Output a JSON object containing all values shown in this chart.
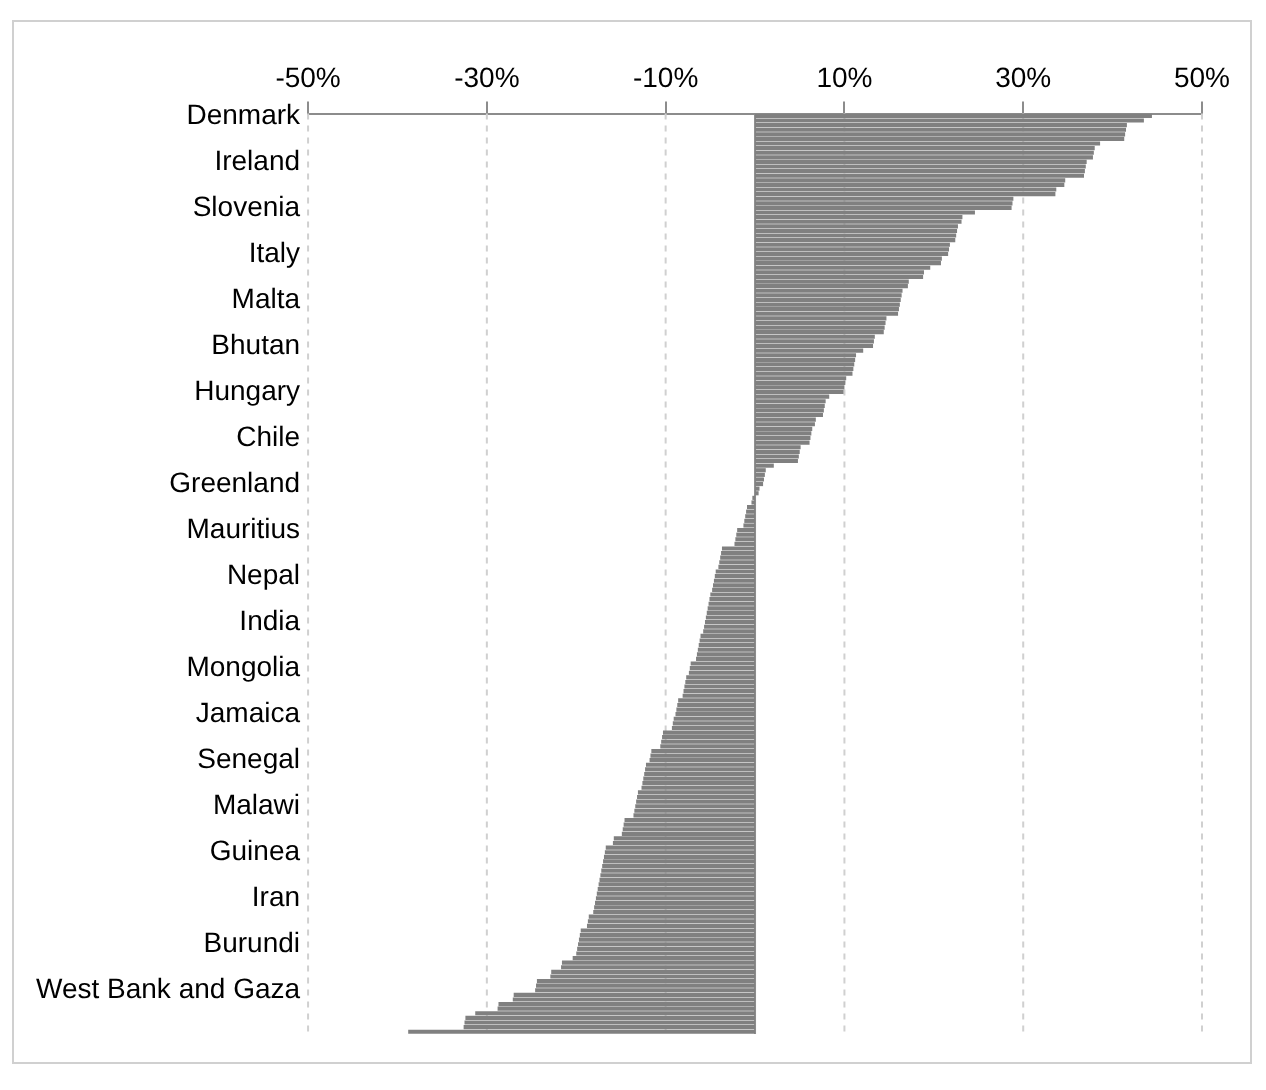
{
  "chart_data": {
    "type": "bar",
    "orientation": "horizontal",
    "categories": [
      "Denmark",
      null,
      null,
      null,
      null,
      null,
      null,
      null,
      null,
      null,
      "Ireland",
      null,
      null,
      null,
      null,
      null,
      null,
      null,
      null,
      null,
      "Slovenia",
      null,
      null,
      null,
      null,
      null,
      null,
      null,
      null,
      null,
      "Italy",
      null,
      null,
      null,
      null,
      null,
      null,
      null,
      null,
      null,
      "Malta",
      null,
      null,
      null,
      null,
      null,
      null,
      null,
      null,
      null,
      "Bhutan",
      null,
      null,
      null,
      null,
      null,
      null,
      null,
      null,
      null,
      "Hungary",
      null,
      null,
      null,
      null,
      null,
      null,
      null,
      null,
      null,
      "Chile",
      null,
      null,
      null,
      null,
      null,
      null,
      null,
      null,
      null,
      "Greenland",
      null,
      null,
      null,
      null,
      null,
      null,
      null,
      null,
      null,
      "Mauritius",
      null,
      null,
      null,
      null,
      null,
      null,
      null,
      null,
      null,
      "Nepal",
      null,
      null,
      null,
      null,
      null,
      null,
      null,
      null,
      null,
      "India",
      null,
      null,
      null,
      null,
      null,
      null,
      null,
      null,
      null,
      "Mongolia",
      null,
      null,
      null,
      null,
      null,
      null,
      null,
      null,
      null,
      "Jamaica",
      null,
      null,
      null,
      null,
      null,
      null,
      null,
      null,
      null,
      "Senegal",
      null,
      null,
      null,
      null,
      null,
      null,
      null,
      null,
      null,
      "Malawi",
      null,
      null,
      null,
      null,
      null,
      null,
      null,
      null,
      null,
      "Guinea",
      null,
      null,
      null,
      null,
      null,
      null,
      null,
      null,
      null,
      "Iran",
      null,
      null,
      null,
      null,
      null,
      null,
      null,
      null,
      null,
      "Burundi",
      null,
      null,
      null,
      null,
      null,
      null,
      null,
      null,
      null,
      "West Bank and Gaza",
      null,
      null,
      null,
      null,
      null,
      null,
      null,
      null,
      null
    ],
    "values": [
      44.4,
      43.5,
      41.6,
      41.5,
      41.4,
      41.3,
      38.6,
      38.0,
      37.9,
      37.8,
      37.1,
      37.0,
      36.9,
      36.8,
      34.7,
      34.6,
      33.7,
      33.6,
      28.9,
      28.8,
      28.7,
      24.6,
      23.2,
      23.1,
      22.7,
      22.6,
      22.5,
      22.4,
      21.8,
      21.7,
      21.6,
      20.9,
      20.8,
      19.6,
      18.9,
      18.8,
      17.2,
      17.1,
      16.5,
      16.4,
      16.3,
      16.2,
      16.1,
      16.0,
      14.7,
      14.6,
      14.5,
      14.4,
      13.4,
      13.3,
      13.2,
      12.1,
      11.3,
      11.2,
      11.1,
      11.0,
      10.9,
      10.2,
      10.1,
      10.0,
      9.9,
      8.3,
      7.9,
      7.8,
      7.7,
      7.6,
      6.8,
      6.7,
      6.4,
      6.3,
      6.2,
      6.1,
      5.1,
      5.0,
      4.9,
      4.8,
      2.1,
      1.2,
      1.1,
      1.0,
      0.9,
      0.5,
      0.4,
      -0.3,
      -0.4,
      -0.9,
      -1.0,
      -1.1,
      -1.2,
      -1.3,
      -2.0,
      -2.1,
      -2.2,
      -2.3,
      -3.7,
      -3.8,
      -3.9,
      -4.0,
      -4.1,
      -4.4,
      -4.5,
      -4.6,
      -4.7,
      -4.8,
      -5.0,
      -5.1,
      -5.2,
      -5.3,
      -5.4,
      -5.5,
      -5.6,
      -5.7,
      -5.8,
      -6.1,
      -6.2,
      -6.3,
      -6.4,
      -6.5,
      -6.6,
      -7.2,
      -7.3,
      -7.4,
      -7.7,
      -7.8,
      -7.9,
      -8.0,
      -8.1,
      -8.6,
      -8.7,
      -8.8,
      -8.9,
      -9.1,
      -9.2,
      -9.3,
      -10.3,
      -10.4,
      -10.5,
      -10.6,
      -11.6,
      -11.7,
      -11.8,
      -12.2,
      -12.3,
      -12.4,
      -12.5,
      -12.6,
      -12.7,
      -13.1,
      -13.2,
      -13.3,
      -13.4,
      -13.5,
      -13.6,
      -14.6,
      -14.7,
      -14.8,
      -14.9,
      -15.8,
      -15.9,
      -16.7,
      -16.8,
      -16.9,
      -17.0,
      -17.1,
      -17.2,
      -17.3,
      -17.4,
      -17.5,
      -17.6,
      -17.7,
      -17.8,
      -17.9,
      -18.0,
      -18.1,
      -18.6,
      -18.7,
      -18.8,
      -19.5,
      -19.6,
      -19.7,
      -19.8,
      -19.9,
      -20.0,
      -20.4,
      -21.6,
      -21.7,
      -22.8,
      -22.9,
      -24.4,
      -24.5,
      -24.6,
      -27.0,
      -27.1,
      -28.7,
      -28.8,
      -31.3,
      -32.4,
      -32.5,
      -32.6,
      -38.8
    ],
    "color": "#808080",
    "xlim": [
      -50,
      50
    ],
    "xticks": [
      {
        "value": -50,
        "label": "-50%"
      },
      {
        "value": -30,
        "label": "-30%"
      },
      {
        "value": -10,
        "label": "-10%"
      },
      {
        "value": 10,
        "label": "10%"
      },
      {
        "value": 30,
        "label": "30%"
      },
      {
        "value": 50,
        "label": "50%"
      }
    ],
    "grid": "x",
    "legend": false
  }
}
